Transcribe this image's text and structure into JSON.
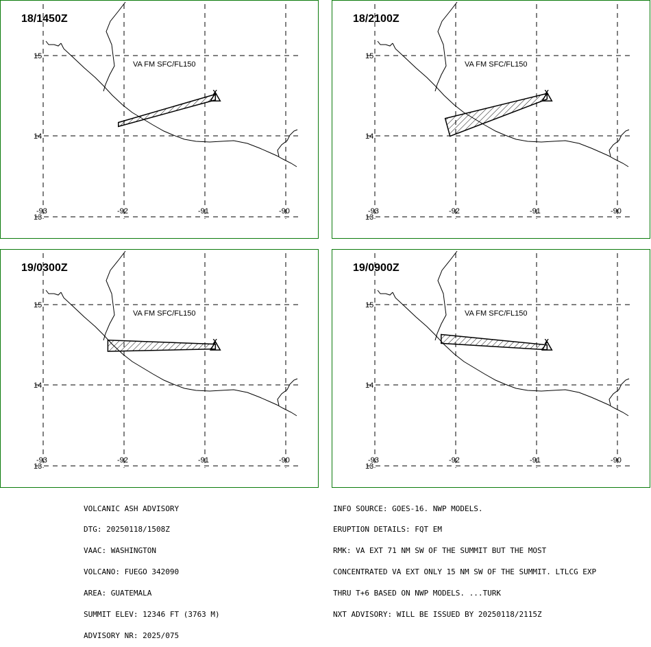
{
  "panels": [
    {
      "time": "18/1450Z",
      "level": "VA FM SFC/FL150",
      "polygon": [
        [
          -92.07,
          14.17
        ],
        [
          -90.87,
          14.52
        ],
        [
          -90.87,
          14.45
        ],
        [
          -92.07,
          14.12
        ]
      ]
    },
    {
      "time": "18/2100Z",
      "level": "VA FM SFC/FL150",
      "polygon": [
        [
          -92.13,
          14.22
        ],
        [
          -90.87,
          14.53
        ],
        [
          -90.87,
          14.46
        ],
        [
          -92.07,
          14.0
        ]
      ]
    },
    {
      "time": "19/0300Z",
      "level": "VA FM SFC/FL150",
      "polygon": [
        [
          -92.2,
          14.56
        ],
        [
          -90.87,
          14.51
        ],
        [
          -90.87,
          14.45
        ],
        [
          -92.2,
          14.42
        ]
      ]
    },
    {
      "time": "19/0900Z",
      "level": "VA FM SFC/FL150",
      "polygon": [
        [
          -92.18,
          14.63
        ],
        [
          -90.87,
          14.5
        ],
        [
          -90.87,
          14.44
        ],
        [
          -92.18,
          14.52
        ]
      ]
    }
  ],
  "axes": {
    "lon_labels": [
      "-93",
      "-92",
      "-91",
      "-90"
    ],
    "lat_labels": [
      "15",
      "14",
      "13"
    ]
  },
  "summit_marker": "X",
  "advisory_left": [
    "VOLCANIC ASH ADVISORY",
    "DTG: 20250118/1508Z",
    "VAAC: WASHINGTON",
    "VOLCANO: FUEGO 342090",
    "AREA: GUATEMALA",
    "SUMMIT ELEV: 12346 FT (3763 M)",
    "ADVISORY NR: 2025/075"
  ],
  "advisory_right": [
    "INFO SOURCE: GOES-16. NWP MODELS.",
    "ERUPTION DETAILS: FQT EM",
    "RMK: VA EXT 71 NM SW OF THE SUMMIT BUT THE MOST",
    "CONCENTRATED VA EXT ONLY 15 NM SW OF THE SUMMIT. LTLCG EXP",
    "THRU T+6 BASED ON NWP MODELS. ...TURK",
    "NXT ADVISORY: WILL BE ISSUED BY 20250118/2115Z"
  ],
  "colors": {
    "panel_border": "#0a7a0a",
    "lines": "#000000"
  }
}
